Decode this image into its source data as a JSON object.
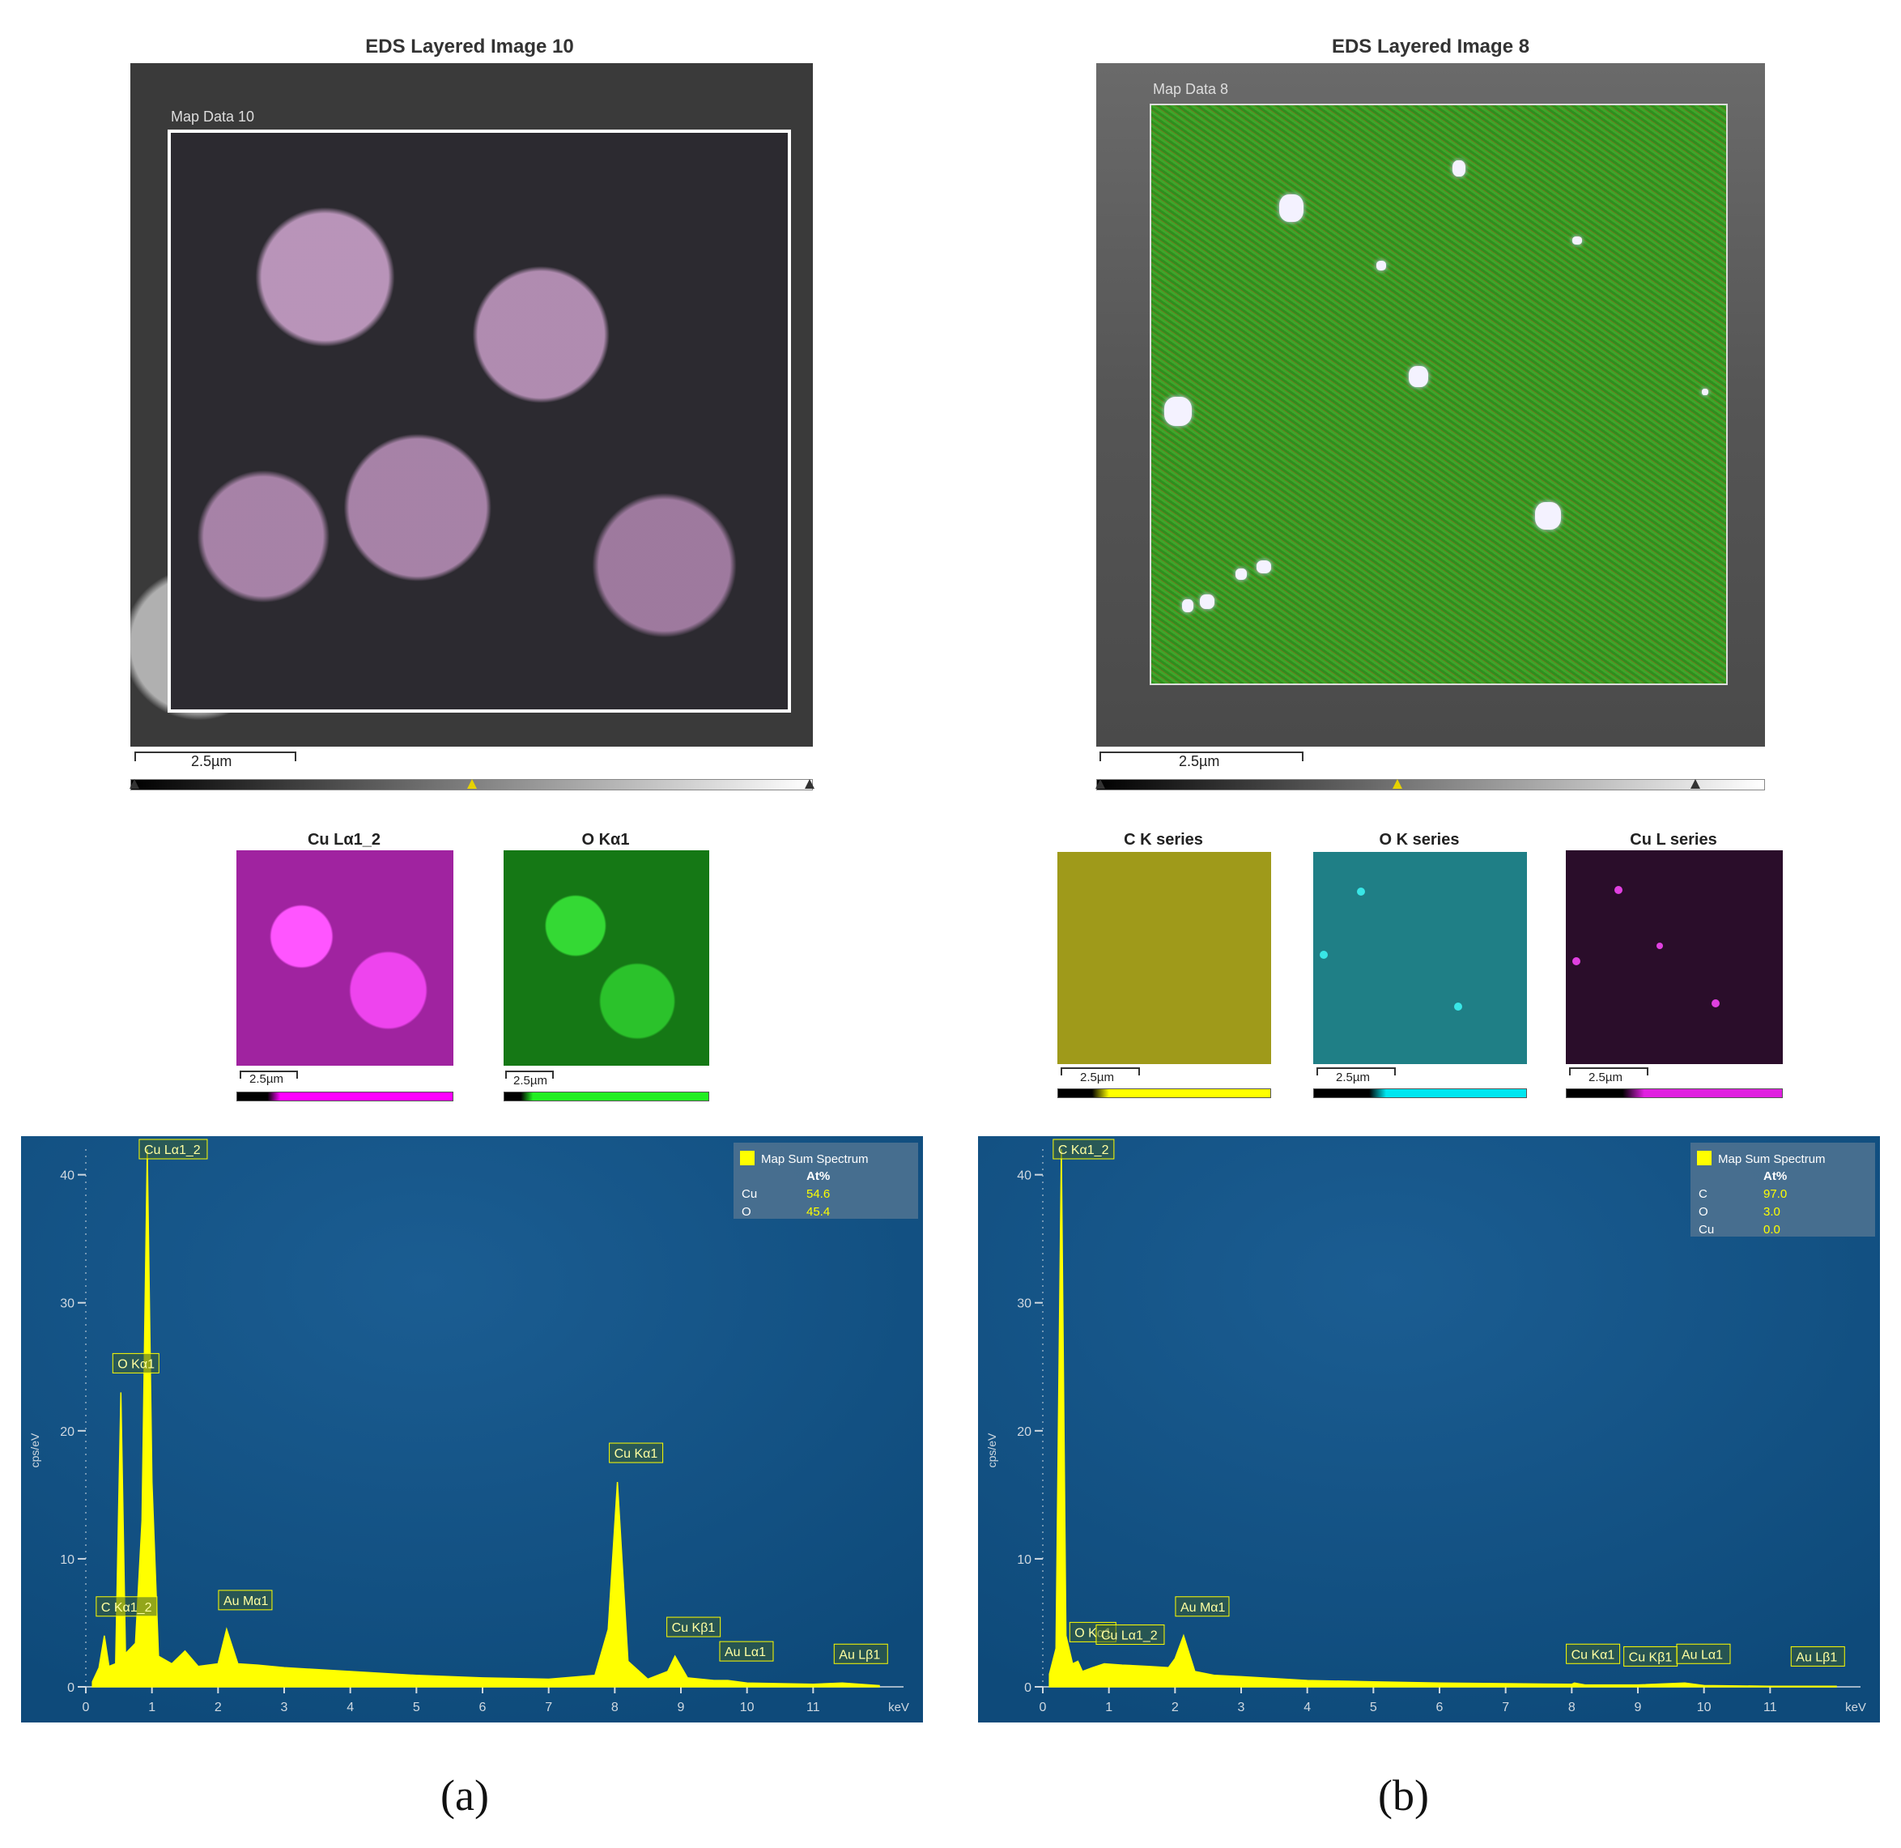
{
  "panel_a": {
    "title": "EDS Layered Image 10",
    "map_label": "Map Data 10",
    "scale": "2.5µm",
    "thumbs": [
      {
        "title": "Cu Lα1_2",
        "scale": "2.5µm"
      },
      {
        "title": "O Kα1",
        "scale": "2.5µm"
      }
    ],
    "caption": "(a)"
  },
  "panel_b": {
    "title": "EDS Layered Image 8",
    "map_label": "Map Data 8",
    "scale": "2.5µm",
    "thumbs": [
      {
        "title": "C K series",
        "scale": "2.5µm"
      },
      {
        "title": "O K series",
        "scale": "2.5µm"
      },
      {
        "title": "Cu L series",
        "scale": "2.5µm"
      }
    ],
    "caption": "(b)"
  },
  "colors": {
    "spectrum_bg": "#0e4a7a",
    "spectrum_fill": "#ffff00",
    "legend_bg": "#4d7190",
    "legend_value": "#ffff00"
  },
  "chart_data": [
    {
      "type": "area",
      "title": "",
      "xlabel": "keV",
      "ylabel": "cps/eV",
      "xlim": [
        0,
        12
      ],
      "ylim": [
        0,
        42
      ],
      "xticks": [
        "0",
        "1",
        "2",
        "3",
        "4",
        "5",
        "6",
        "7",
        "8",
        "9",
        "10",
        "11"
      ],
      "yticks": [
        "0",
        "10",
        "20",
        "30",
        "40"
      ],
      "legend": {
        "name": "Map Sum Spectrum",
        "header": "At%",
        "placement": "top-right",
        "rows": [
          {
            "element": "Cu",
            "value": "54.6"
          },
          {
            "element": "O",
            "value": "45.4"
          }
        ]
      },
      "peaks": [
        {
          "label": "C Kα1_2",
          "x": 0.28,
          "y": 4.0
        },
        {
          "label": "O Kα1",
          "x": 0.53,
          "y": 23.0
        },
        {
          "label": "Cu Lα1_2",
          "x": 0.93,
          "y": 42.0
        },
        {
          "label": "Au Mα1",
          "x": 2.13,
          "y": 4.5
        },
        {
          "label": "Cu Kα1",
          "x": 8.04,
          "y": 16.0
        },
        {
          "label": "Cu Kβ1",
          "x": 8.91,
          "y": 2.4
        },
        {
          "label": "Au Lα1",
          "x": 9.71,
          "y": 0.5
        },
        {
          "label": "Au Lβ1",
          "x": 11.44,
          "y": 0.3
        }
      ],
      "x": [
        0.1,
        0.2,
        0.28,
        0.35,
        0.45,
        0.53,
        0.6,
        0.75,
        0.85,
        0.93,
        1.0,
        1.1,
        1.3,
        1.5,
        1.7,
        2.0,
        2.13,
        2.3,
        2.6,
        3,
        4,
        5,
        6,
        7,
        7.7,
        7.9,
        8.04,
        8.2,
        8.5,
        8.8,
        8.91,
        9.1,
        9.5,
        9.71,
        10,
        11,
        11.44,
        12
      ],
      "y": [
        0.4,
        1.5,
        4.0,
        1.6,
        1.8,
        23.0,
        2.6,
        3.4,
        13.0,
        42.0,
        16.0,
        2.4,
        1.8,
        2.8,
        1.6,
        1.8,
        4.5,
        1.8,
        1.7,
        1.5,
        1.2,
        0.9,
        0.7,
        0.6,
        0.9,
        4.5,
        16.0,
        2.0,
        0.6,
        1.2,
        2.4,
        0.7,
        0.5,
        0.5,
        0.3,
        0.2,
        0.3,
        0.1
      ]
    },
    {
      "type": "area",
      "title": "",
      "xlabel": "keV",
      "ylabel": "cps/eV",
      "xlim": [
        0,
        12
      ],
      "ylim": [
        0,
        42
      ],
      "xticks": [
        "0",
        "1",
        "2",
        "3",
        "4",
        "5",
        "6",
        "7",
        "8",
        "9",
        "10",
        "11"
      ],
      "yticks": [
        "0",
        "10",
        "20",
        "30",
        "40"
      ],
      "legend": {
        "name": "Map Sum Spectrum",
        "header": "At%",
        "placement": "top-right",
        "rows": [
          {
            "element": "C",
            "value": "97.0"
          },
          {
            "element": "O",
            "value": "3.0"
          },
          {
            "element": "Cu",
            "value": "0.0"
          }
        ]
      },
      "peaks": [
        {
          "label": "C Kα1_2",
          "x": 0.28,
          "y": 42.0
        },
        {
          "label": "O Kα1",
          "x": 0.53,
          "y": 2.0
        },
        {
          "label": "Cu Lα1_2",
          "x": 0.93,
          "y": 1.8
        },
        {
          "label": "Au Mα1",
          "x": 2.13,
          "y": 4.0
        },
        {
          "label": "Cu Kα1",
          "x": 8.04,
          "y": 0.3
        },
        {
          "label": "Cu Kβ1",
          "x": 8.91,
          "y": 0.1
        },
        {
          "label": "Au Lα1",
          "x": 9.71,
          "y": 0.3
        },
        {
          "label": "Au Lβ1",
          "x": 11.44,
          "y": 0.1
        }
      ],
      "x": [
        0.1,
        0.2,
        0.28,
        0.35,
        0.45,
        0.53,
        0.6,
        0.75,
        0.93,
        1.2,
        1.6,
        1.9,
        2.0,
        2.13,
        2.3,
        2.6,
        3,
        4,
        5,
        6,
        7,
        8,
        8.04,
        8.2,
        9,
        9.71,
        10,
        11,
        12
      ],
      "y": [
        1.0,
        3.0,
        42.0,
        4.0,
        1.8,
        2.0,
        1.2,
        1.5,
        1.8,
        1.7,
        1.6,
        1.5,
        2.2,
        4.0,
        1.2,
        0.9,
        0.8,
        0.5,
        0.4,
        0.3,
        0.25,
        0.2,
        0.3,
        0.15,
        0.15,
        0.3,
        0.1,
        0.05,
        0.05
      ]
    }
  ]
}
